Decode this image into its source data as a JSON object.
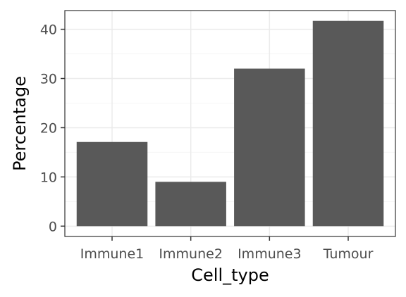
{
  "chart_data": {
    "type": "bar",
    "title": "",
    "xlabel": "Cell_type",
    "ylabel": "Percentage",
    "categories": [
      "Immune1",
      "Immune2",
      "Immune3",
      "Tumour"
    ],
    "values": [
      17.1,
      9.0,
      32.0,
      41.7
    ],
    "ylim": [
      -2.1,
      43.8
    ],
    "yticks": [
      0,
      10,
      20,
      30,
      40
    ],
    "ytick_labels": [
      "0",
      "10",
      "20",
      "30",
      "40"
    ],
    "grid": true,
    "legend": "none",
    "colors": {
      "bar": "#595959",
      "grid_major": "#ebebeb",
      "grid_minor": "#f5f5f5",
      "panel_border": "#333333",
      "tick_text": "#4d4d4d",
      "axis_title": "#000000"
    }
  }
}
